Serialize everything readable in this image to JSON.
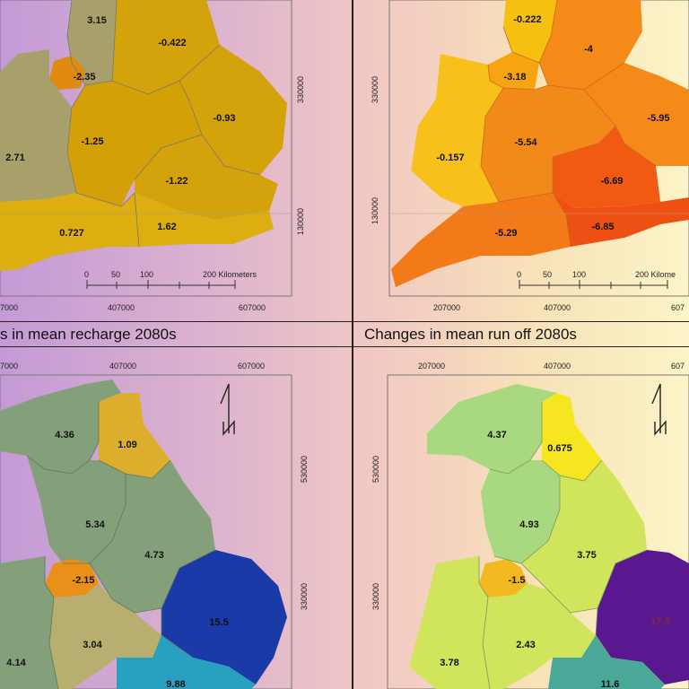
{
  "captions": {
    "bottom_left": "s in mean recharge 2080s",
    "bottom_right": "Changes in mean run off 2080s"
  },
  "panels": {
    "top_left": {
      "x_ticks": [
        "7000",
        "407000",
        "607000"
      ],
      "y_ticks": [
        "330000",
        "130000"
      ],
      "scale": {
        "ticks": [
          "0",
          "50",
          "100",
          "200 Kilometers"
        ]
      },
      "regions": [
        {
          "label": "3.15",
          "color": "#a8a06a"
        },
        {
          "label": "-0.422",
          "color": "#d4a20a"
        },
        {
          "label": "-2.35",
          "color": "#e08a10"
        },
        {
          "label": "-0.93",
          "color": "#d4a20a"
        },
        {
          "label": "-1.25",
          "color": "#d3a008"
        },
        {
          "label": "2.71",
          "color": "#a8a06a"
        },
        {
          "label": "-1.22",
          "color": "#d4a30c"
        },
        {
          "label": "0.727",
          "color": "#dcae10"
        },
        {
          "label": "1.62",
          "color": "#dcae10"
        }
      ]
    },
    "top_right": {
      "x_ticks": [
        "207000",
        "407000",
        "607"
      ],
      "y_ticks": [
        "330000",
        "130000"
      ],
      "scale": {
        "ticks": [
          "0",
          "50",
          "100",
          "200 Kilome"
        ]
      },
      "regions": [
        {
          "label": "-0.222",
          "color": "#f6c010"
        },
        {
          "label": "-4",
          "color": "#f58a18"
        },
        {
          "label": "-3.18",
          "color": "#f7a412"
        },
        {
          "label": "-5.95",
          "color": "#f58a18"
        },
        {
          "label": "-5.54",
          "color": "#f28a1a"
        },
        {
          "label": "-0.157",
          "color": "#f8c01a"
        },
        {
          "label": "-6.69",
          "color": "#f05a12"
        },
        {
          "label": "-5.29",
          "color": "#f27a18"
        },
        {
          "label": "-6.85",
          "color": "#ee5014"
        }
      ]
    },
    "bottom_left": {
      "x_ticks": [
        "7000",
        "407000",
        "607000"
      ],
      "y_ticks": [
        "530000",
        "330000"
      ],
      "regions": [
        {
          "label": "4.36",
          "color": "#84a07a"
        },
        {
          "label": "1.09",
          "color": "#dcae2c"
        },
        {
          "label": "5.34",
          "color": "#84a07a"
        },
        {
          "label": "4.73",
          "color": "#84a07a"
        },
        {
          "label": "-2.15",
          "color": "#ea9018"
        },
        {
          "label": "3.04",
          "color": "#b8ae70"
        },
        {
          "label": "15.5",
          "color": "#1a3aa8"
        },
        {
          "label": "4.14",
          "color": "#84a07a"
        },
        {
          "label": "9.88",
          "color": "#28a0c0"
        }
      ]
    },
    "bottom_right": {
      "x_ticks": [
        "207000",
        "407000",
        "607"
      ],
      "y_ticks": [
        "530000",
        "330000"
      ],
      "regions": [
        {
          "label": "4.37",
          "color": "#a8d880"
        },
        {
          "label": "0.675",
          "color": "#f5e620"
        },
        {
          "label": "4.93",
          "color": "#a8d880"
        },
        {
          "label": "3.75",
          "color": "#d0e45c"
        },
        {
          "label": "-1.5",
          "color": "#f2ba20"
        },
        {
          "label": "17.8",
          "color": "#5a1890"
        },
        {
          "label": "2.43",
          "color": "#d0e45c"
        },
        {
          "label": "3.78",
          "color": "#d0e45c"
        },
        {
          "label": "11.6",
          "color": "#4aa898"
        }
      ]
    }
  }
}
